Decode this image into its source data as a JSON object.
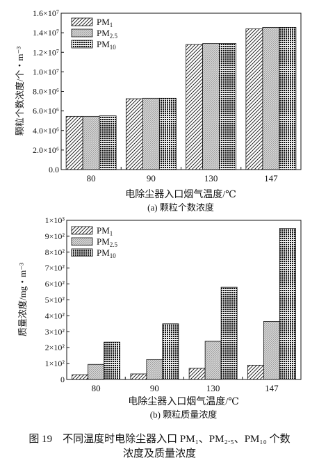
{
  "chart_data": [
    {
      "type": "bar",
      "categories": [
        "80",
        "90",
        "130",
        "147"
      ],
      "series": [
        {
          "name": "PM1",
          "values": [
            5450000.0,
            7250000.0,
            12800000.0,
            14400000.0
          ]
        },
        {
          "name": "PM2.5",
          "values": [
            5450000.0,
            7300000.0,
            12900000.0,
            14550000.0
          ]
        },
        {
          "name": "PM10",
          "values": [
            5500000.0,
            7300000.0,
            12900000.0,
            14550000.0
          ]
        }
      ],
      "xlabel": "电除尘器入口烟气温度/℃",
      "ylabel": "颗粒个数浓度/个・m⁻³",
      "subtitle": "(a) 颗粒个数浓度",
      "ylim": [
        0,
        16000000.0
      ],
      "yticks": [
        "0.0",
        "2.0×10⁶",
        "4.0×10⁶",
        "6.0×10⁶",
        "8.0×10⁶",
        "1.0×10⁷",
        "1.2×10⁷",
        "1.4×10⁷",
        "1.6×10⁷"
      ],
      "legend_position": "top-left",
      "grid": false
    },
    {
      "type": "bar",
      "categories": [
        "80",
        "90",
        "130",
        "147"
      ],
      "series": [
        {
          "name": "PM1",
          "values": [
            30,
            35,
            70,
            90
          ]
        },
        {
          "name": "PM2.5",
          "values": [
            95,
            125,
            240,
            365
          ]
        },
        {
          "name": "PM10",
          "values": [
            235,
            350,
            580,
            950
          ]
        }
      ],
      "xlabel": "电除尘器入口烟气温度/℃",
      "ylabel": "质量浓度/mg・m⁻³",
      "subtitle": "(b) 颗粒质量浓度",
      "ylim": [
        0,
        1000
      ],
      "yticks": [
        "0",
        "1×10²",
        "2×10²",
        "3×10²",
        "4×10²",
        "5×10²",
        "6×10²",
        "7×10²",
        "8×10²",
        "9×10²",
        "1×10³"
      ],
      "legend_position": "top-left",
      "grid": false
    }
  ],
  "legend_labels": {
    "pm1": {
      "base": "PM",
      "sub": "1"
    },
    "pm25": {
      "base": "PM",
      "sub": "2.5"
    },
    "pm10": {
      "base": "PM",
      "sub": "10"
    }
  },
  "caption": {
    "line1": "图 19　不同温度时电除尘器入口 PM₁、PM₂.₅、PM₁₀ 个数",
    "line2": "浓度及质量浓度"
  }
}
